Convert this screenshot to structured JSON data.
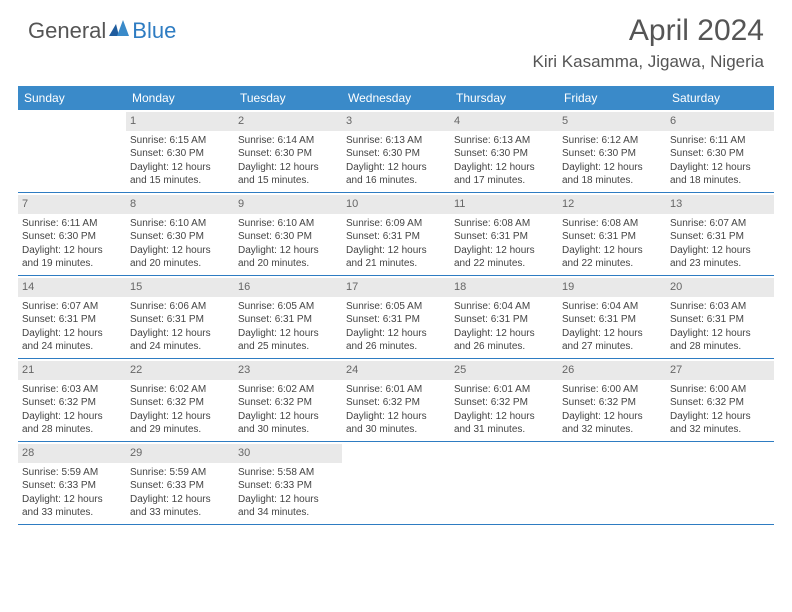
{
  "logo": {
    "part1": "General",
    "part2": "Blue"
  },
  "title": "April 2024",
  "location": "Kiri Kasamma, Jigawa, Nigeria",
  "colors": {
    "header_bg": "#3a8ac9",
    "divider": "#2e7cc2",
    "daynum_bg": "#e9e9e9",
    "text": "#444444",
    "title_text": "#555555"
  },
  "dayNames": [
    "Sunday",
    "Monday",
    "Tuesday",
    "Wednesday",
    "Thursday",
    "Friday",
    "Saturday"
  ],
  "weeks": [
    [
      {
        "empty": true
      },
      {
        "num": "1",
        "sunrise": "Sunrise: 6:15 AM",
        "sunset": "Sunset: 6:30 PM",
        "daylight": "Daylight: 12 hours and 15 minutes."
      },
      {
        "num": "2",
        "sunrise": "Sunrise: 6:14 AM",
        "sunset": "Sunset: 6:30 PM",
        "daylight": "Daylight: 12 hours and 15 minutes."
      },
      {
        "num": "3",
        "sunrise": "Sunrise: 6:13 AM",
        "sunset": "Sunset: 6:30 PM",
        "daylight": "Daylight: 12 hours and 16 minutes."
      },
      {
        "num": "4",
        "sunrise": "Sunrise: 6:13 AM",
        "sunset": "Sunset: 6:30 PM",
        "daylight": "Daylight: 12 hours and 17 minutes."
      },
      {
        "num": "5",
        "sunrise": "Sunrise: 6:12 AM",
        "sunset": "Sunset: 6:30 PM",
        "daylight": "Daylight: 12 hours and 18 minutes."
      },
      {
        "num": "6",
        "sunrise": "Sunrise: 6:11 AM",
        "sunset": "Sunset: 6:30 PM",
        "daylight": "Daylight: 12 hours and 18 minutes."
      }
    ],
    [
      {
        "num": "7",
        "sunrise": "Sunrise: 6:11 AM",
        "sunset": "Sunset: 6:30 PM",
        "daylight": "Daylight: 12 hours and 19 minutes."
      },
      {
        "num": "8",
        "sunrise": "Sunrise: 6:10 AM",
        "sunset": "Sunset: 6:30 PM",
        "daylight": "Daylight: 12 hours and 20 minutes."
      },
      {
        "num": "9",
        "sunrise": "Sunrise: 6:10 AM",
        "sunset": "Sunset: 6:30 PM",
        "daylight": "Daylight: 12 hours and 20 minutes."
      },
      {
        "num": "10",
        "sunrise": "Sunrise: 6:09 AM",
        "sunset": "Sunset: 6:31 PM",
        "daylight": "Daylight: 12 hours and 21 minutes."
      },
      {
        "num": "11",
        "sunrise": "Sunrise: 6:08 AM",
        "sunset": "Sunset: 6:31 PM",
        "daylight": "Daylight: 12 hours and 22 minutes."
      },
      {
        "num": "12",
        "sunrise": "Sunrise: 6:08 AM",
        "sunset": "Sunset: 6:31 PM",
        "daylight": "Daylight: 12 hours and 22 minutes."
      },
      {
        "num": "13",
        "sunrise": "Sunrise: 6:07 AM",
        "sunset": "Sunset: 6:31 PM",
        "daylight": "Daylight: 12 hours and 23 minutes."
      }
    ],
    [
      {
        "num": "14",
        "sunrise": "Sunrise: 6:07 AM",
        "sunset": "Sunset: 6:31 PM",
        "daylight": "Daylight: 12 hours and 24 minutes."
      },
      {
        "num": "15",
        "sunrise": "Sunrise: 6:06 AM",
        "sunset": "Sunset: 6:31 PM",
        "daylight": "Daylight: 12 hours and 24 minutes."
      },
      {
        "num": "16",
        "sunrise": "Sunrise: 6:05 AM",
        "sunset": "Sunset: 6:31 PM",
        "daylight": "Daylight: 12 hours and 25 minutes."
      },
      {
        "num": "17",
        "sunrise": "Sunrise: 6:05 AM",
        "sunset": "Sunset: 6:31 PM",
        "daylight": "Daylight: 12 hours and 26 minutes."
      },
      {
        "num": "18",
        "sunrise": "Sunrise: 6:04 AM",
        "sunset": "Sunset: 6:31 PM",
        "daylight": "Daylight: 12 hours and 26 minutes."
      },
      {
        "num": "19",
        "sunrise": "Sunrise: 6:04 AM",
        "sunset": "Sunset: 6:31 PM",
        "daylight": "Daylight: 12 hours and 27 minutes."
      },
      {
        "num": "20",
        "sunrise": "Sunrise: 6:03 AM",
        "sunset": "Sunset: 6:31 PM",
        "daylight": "Daylight: 12 hours and 28 minutes."
      }
    ],
    [
      {
        "num": "21",
        "sunrise": "Sunrise: 6:03 AM",
        "sunset": "Sunset: 6:32 PM",
        "daylight": "Daylight: 12 hours and 28 minutes."
      },
      {
        "num": "22",
        "sunrise": "Sunrise: 6:02 AM",
        "sunset": "Sunset: 6:32 PM",
        "daylight": "Daylight: 12 hours and 29 minutes."
      },
      {
        "num": "23",
        "sunrise": "Sunrise: 6:02 AM",
        "sunset": "Sunset: 6:32 PM",
        "daylight": "Daylight: 12 hours and 30 minutes."
      },
      {
        "num": "24",
        "sunrise": "Sunrise: 6:01 AM",
        "sunset": "Sunset: 6:32 PM",
        "daylight": "Daylight: 12 hours and 30 minutes."
      },
      {
        "num": "25",
        "sunrise": "Sunrise: 6:01 AM",
        "sunset": "Sunset: 6:32 PM",
        "daylight": "Daylight: 12 hours and 31 minutes."
      },
      {
        "num": "26",
        "sunrise": "Sunrise: 6:00 AM",
        "sunset": "Sunset: 6:32 PM",
        "daylight": "Daylight: 12 hours and 32 minutes."
      },
      {
        "num": "27",
        "sunrise": "Sunrise: 6:00 AM",
        "sunset": "Sunset: 6:32 PM",
        "daylight": "Daylight: 12 hours and 32 minutes."
      }
    ],
    [
      {
        "num": "28",
        "sunrise": "Sunrise: 5:59 AM",
        "sunset": "Sunset: 6:33 PM",
        "daylight": "Daylight: 12 hours and 33 minutes."
      },
      {
        "num": "29",
        "sunrise": "Sunrise: 5:59 AM",
        "sunset": "Sunset: 6:33 PM",
        "daylight": "Daylight: 12 hours and 33 minutes."
      },
      {
        "num": "30",
        "sunrise": "Sunrise: 5:58 AM",
        "sunset": "Sunset: 6:33 PM",
        "daylight": "Daylight: 12 hours and 34 minutes."
      },
      {
        "empty": true
      },
      {
        "empty": true
      },
      {
        "empty": true
      },
      {
        "empty": true
      }
    ]
  ]
}
